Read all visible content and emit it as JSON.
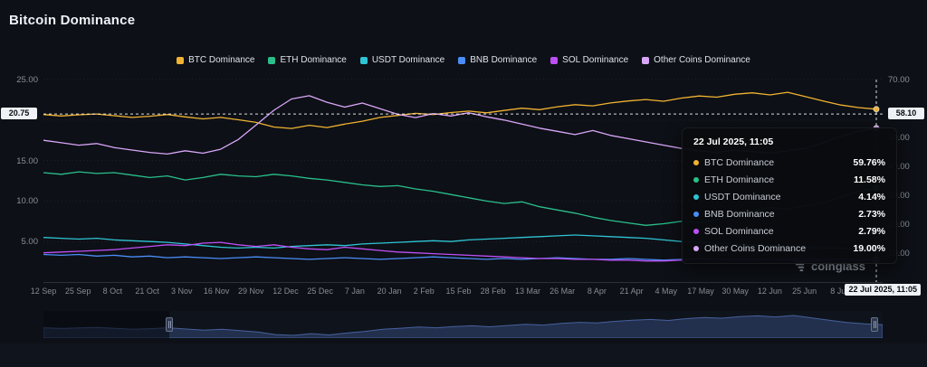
{
  "header": {
    "title": "Bitcoin Dominance"
  },
  "watermark": {
    "brand": "coinglass"
  },
  "crosshair": {
    "left_label": "20.75",
    "left_value": 20.75,
    "right_label": "58.10",
    "x_label": "22 Jul 2025, 11:05"
  },
  "tooltip": {
    "title": "22 Jul 2025, 11:05",
    "rows": [
      {
        "name": "BTC Dominance",
        "value": "59.76%"
      },
      {
        "name": "ETH Dominance",
        "value": "11.58%"
      },
      {
        "name": "USDT Dominance",
        "value": "4.14%"
      },
      {
        "name": "BNB Dominance",
        "value": "2.73%"
      },
      {
        "name": "SOL Dominance",
        "value": "2.79%"
      },
      {
        "name": "Other Coins Dominance",
        "value": "19.00%"
      }
    ]
  },
  "axes": {
    "left_ticks": [
      {
        "label": "25.00",
        "value": 25
      },
      {
        "label": "15.00",
        "value": 15
      },
      {
        "label": "10.00",
        "value": 10
      },
      {
        "label": "5.00",
        "value": 5
      }
    ],
    "right_ticks": [
      {
        "label": "70.00",
        "value": 70
      },
      {
        "label": "50.00",
        "value": 50
      },
      {
        "label": "40.00",
        "value": 40
      },
      {
        "label": "30.00",
        "value": 30
      },
      {
        "label": "20.00",
        "value": 20
      },
      {
        "label": "10.00",
        "value": 10
      }
    ],
    "grid_values": [
      25,
      20,
      15,
      10,
      5
    ]
  },
  "chart_data": {
    "type": "line",
    "title": "Bitcoin Dominance",
    "x_range": [
      "12 Sep 2024",
      "22 Jul 2025, 11:05"
    ],
    "left_ylim": [
      0,
      25
    ],
    "right_ylim": [
      0,
      70
    ],
    "x_tick_labels": [
      "12 Sep",
      "25 Sep",
      "8 Oct",
      "21 Oct",
      "3 Nov",
      "16 Nov",
      "29 Nov",
      "12 Dec",
      "25 Dec",
      "7 Jan",
      "20 Jan",
      "2 Feb",
      "15 Feb",
      "28 Feb",
      "13 Mar",
      "26 Mar",
      "8 Apr",
      "21 Apr",
      "4 May",
      "17 May",
      "30 May",
      "12 Jun",
      "25 Jun",
      "8 Jul"
    ],
    "series": [
      {
        "name": "BTC Dominance",
        "key": "btc",
        "axis": "right",
        "color": "#f0b232",
        "values": [
          57.9,
          57.4,
          57.8,
          58.1,
          57.5,
          56.9,
          57.3,
          57.9,
          57.1,
          56.4,
          56.9,
          56.1,
          55.2,
          53.6,
          53.1,
          54.2,
          53.4,
          54.6,
          55.6,
          56.9,
          57.6,
          58.3,
          57.9,
          58.6,
          59.1,
          58.5,
          59.3,
          60.1,
          59.6,
          60.6,
          61.3,
          60.9,
          61.9,
          62.6,
          63.1,
          62.5,
          63.6,
          64.3,
          63.9,
          64.9,
          65.4,
          64.7,
          65.6,
          64.1,
          62.6,
          61.2,
          60.3,
          59.76
        ]
      },
      {
        "name": "ETH Dominance",
        "key": "eth",
        "axis": "left",
        "color": "#2abf8a",
        "values": [
          13.5,
          13.3,
          13.6,
          13.4,
          13.5,
          13.2,
          12.9,
          13.1,
          12.6,
          12.9,
          13.3,
          13.1,
          13.0,
          13.3,
          13.1,
          12.8,
          12.6,
          12.3,
          12.0,
          11.8,
          11.9,
          11.5,
          11.2,
          10.8,
          10.4,
          10.0,
          9.7,
          9.9,
          9.3,
          8.9,
          8.5,
          8.0,
          7.6,
          7.3,
          7.0,
          7.2,
          7.5,
          7.3,
          7.7,
          8.2,
          8.8,
          9.2,
          9.0,
          9.4,
          9.8,
          10.5,
          11.2,
          11.58
        ]
      },
      {
        "name": "USDT Dominance",
        "key": "usdt",
        "axis": "left",
        "color": "#2fc4d4",
        "values": [
          5.5,
          5.4,
          5.3,
          5.4,
          5.2,
          5.1,
          5.0,
          4.9,
          4.7,
          4.5,
          4.3,
          4.2,
          4.3,
          4.2,
          4.4,
          4.5,
          4.6,
          4.5,
          4.7,
          4.8,
          4.9,
          5.0,
          5.1,
          5.0,
          5.2,
          5.3,
          5.4,
          5.5,
          5.6,
          5.7,
          5.8,
          5.7,
          5.6,
          5.5,
          5.4,
          5.2,
          5.0,
          4.9,
          4.8,
          4.7,
          4.6,
          4.5,
          4.4,
          4.3,
          4.2,
          4.2,
          4.1,
          4.14
        ]
      },
      {
        "name": "BNB Dominance",
        "key": "bnb",
        "axis": "left",
        "color": "#4a8df8",
        "values": [
          3.4,
          3.3,
          3.4,
          3.2,
          3.3,
          3.1,
          3.2,
          3.0,
          3.1,
          3.0,
          2.9,
          3.0,
          3.1,
          3.0,
          2.9,
          2.8,
          2.9,
          3.0,
          2.9,
          2.8,
          2.9,
          3.0,
          3.1,
          3.0,
          2.9,
          2.8,
          2.9,
          2.8,
          2.9,
          3.0,
          2.9,
          2.8,
          2.8,
          2.9,
          2.8,
          2.7,
          2.8,
          2.9,
          2.8,
          2.7,
          2.7,
          2.8,
          2.7,
          2.6,
          2.7,
          2.8,
          2.7,
          2.73
        ]
      },
      {
        "name": "SOL Dominance",
        "key": "sol",
        "axis": "left",
        "color": "#bd4ff5",
        "values": [
          3.6,
          3.7,
          3.8,
          3.9,
          4.0,
          4.2,
          4.4,
          4.6,
          4.5,
          4.8,
          4.9,
          4.6,
          4.4,
          4.6,
          4.3,
          4.1,
          4.0,
          4.3,
          4.1,
          3.9,
          3.7,
          3.6,
          3.5,
          3.4,
          3.3,
          3.2,
          3.1,
          3.0,
          2.9,
          2.9,
          2.8,
          2.8,
          2.7,
          2.7,
          2.6,
          2.6,
          2.7,
          2.8,
          2.8,
          2.9,
          2.9,
          2.8,
          2.8,
          2.9,
          2.8,
          2.8,
          2.8,
          2.79
        ]
      },
      {
        "name": "Other Coins Dominance",
        "key": "other",
        "axis": "left",
        "color": "#d8a6f8",
        "values": [
          17.5,
          17.2,
          16.9,
          17.1,
          16.6,
          16.3,
          16.0,
          15.8,
          16.2,
          15.9,
          16.4,
          17.6,
          19.4,
          21.2,
          22.6,
          23.0,
          22.2,
          21.6,
          22.1,
          21.4,
          20.7,
          20.3,
          20.8,
          20.5,
          20.9,
          20.4,
          20.0,
          19.5,
          19.0,
          18.6,
          18.2,
          18.7,
          18.1,
          17.7,
          17.3,
          16.9,
          16.5,
          16.2,
          16.0,
          16.3,
          16.1,
          15.9,
          16.2,
          16.5,
          17.2,
          18.0,
          18.6,
          19.0
        ]
      }
    ]
  }
}
